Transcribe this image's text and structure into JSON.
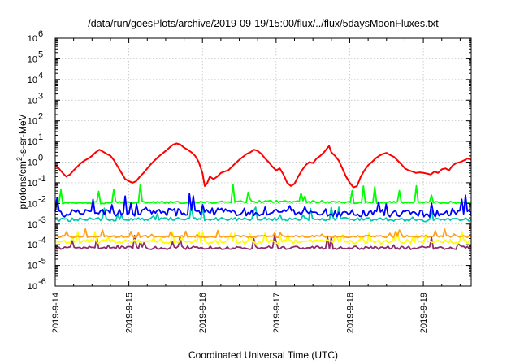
{
  "chart_data": {
    "type": "line",
    "title": "/data/run/goesPlots/archive/2019-09-19/15:00/flux/../flux/5daysMoonFluxes.txt",
    "xlabel": "Coordinated Universal Time (UTC)",
    "ylabel_parts": [
      "protons/cm",
      "2",
      "-s-sr-MeV"
    ],
    "y_scale": "log",
    "ylim_exp": [
      -6,
      6
    ],
    "y_tick_labels": [
      {
        "base": "10",
        "exp": "-6"
      },
      {
        "base": "10",
        "exp": "-5"
      },
      {
        "base": "10",
        "exp": "-4"
      },
      {
        "base": "10",
        "exp": "-3"
      },
      {
        "base": "10",
        "exp": "-2"
      },
      {
        "base": "10",
        "exp": "-1"
      },
      {
        "base": "10",
        "exp": "0"
      },
      {
        "base": "10",
        "exp": "1"
      },
      {
        "base": "10",
        "exp": "2"
      },
      {
        "base": "10",
        "exp": "3"
      },
      {
        "base": "10",
        "exp": "4"
      },
      {
        "base": "10",
        "exp": "5"
      },
      {
        "base": "10",
        "exp": "6"
      }
    ],
    "x_ticks": [
      "2019-9-14",
      "2019-9-15",
      "2019-9-16",
      "2019-9-17",
      "2019-9-18",
      "2019-9-19"
    ],
    "xlim_days": [
      0,
      5.65
    ],
    "grid": true,
    "series": [
      {
        "color": "#ff0000",
        "baseline": [
          -0.3
        ],
        "spread": 0,
        "spikes": 0,
        "points": [
          [
            0.0,
            0.7
          ],
          [
            0.05,
            0.5
          ],
          [
            0.1,
            0.3
          ],
          [
            0.15,
            0.2
          ],
          [
            0.2,
            0.25
          ],
          [
            0.25,
            0.4
          ],
          [
            0.3,
            0.6
          ],
          [
            0.35,
            0.9
          ],
          [
            0.4,
            1.2
          ],
          [
            0.45,
            1.5
          ],
          [
            0.5,
            2.0
          ],
          [
            0.55,
            3.0
          ],
          [
            0.6,
            4.0
          ],
          [
            0.65,
            3.2
          ],
          [
            0.7,
            2.5
          ],
          [
            0.75,
            2.0
          ],
          [
            0.8,
            1.2
          ],
          [
            0.85,
            0.6
          ],
          [
            0.9,
            0.3
          ],
          [
            0.95,
            0.15
          ],
          [
            1.0,
            0.12
          ],
          [
            1.05,
            0.1
          ],
          [
            1.1,
            0.12
          ],
          [
            1.15,
            0.2
          ],
          [
            1.2,
            0.3
          ],
          [
            1.25,
            0.5
          ],
          [
            1.3,
            0.8
          ],
          [
            1.35,
            1.2
          ],
          [
            1.4,
            1.8
          ],
          [
            1.45,
            2.5
          ],
          [
            1.5,
            3.5
          ],
          [
            1.55,
            5.0
          ],
          [
            1.6,
            7.0
          ],
          [
            1.65,
            8.0
          ],
          [
            1.7,
            7.0
          ],
          [
            1.75,
            5.0
          ],
          [
            1.8,
            4.0
          ],
          [
            1.85,
            3.0
          ],
          [
            1.9,
            2.0
          ],
          [
            1.95,
            1.0
          ],
          [
            2.0,
            0.3
          ],
          [
            2.03,
            0.07
          ],
          [
            2.06,
            0.09
          ],
          [
            2.1,
            0.2
          ],
          [
            2.15,
            0.15
          ],
          [
            2.2,
            0.2
          ],
          [
            2.25,
            0.3
          ],
          [
            2.3,
            0.35
          ],
          [
            2.35,
            0.4
          ],
          [
            2.4,
            0.6
          ],
          [
            2.45,
            0.9
          ],
          [
            2.5,
            1.3
          ],
          [
            2.55,
            1.8
          ],
          [
            2.6,
            2.5
          ],
          [
            2.65,
            3.0
          ],
          [
            2.7,
            4.0
          ],
          [
            2.75,
            3.5
          ],
          [
            2.8,
            2.5
          ],
          [
            2.85,
            1.5
          ],
          [
            2.9,
            1.0
          ],
          [
            2.95,
            0.6
          ],
          [
            3.0,
            0.4
          ],
          [
            3.05,
            0.5
          ],
          [
            3.1,
            0.25
          ],
          [
            3.15,
            0.1
          ],
          [
            3.2,
            0.07
          ],
          [
            3.25,
            0.09
          ],
          [
            3.3,
            0.2
          ],
          [
            3.35,
            0.4
          ],
          [
            3.4,
            0.7
          ],
          [
            3.45,
            1.0
          ],
          [
            3.5,
            0.9
          ],
          [
            3.55,
            1.5
          ],
          [
            3.6,
            2.0
          ],
          [
            3.65,
            3.0
          ],
          [
            3.7,
            5.0
          ],
          [
            3.72,
            6.0
          ],
          [
            3.75,
            3.0
          ],
          [
            3.8,
            2.0
          ],
          [
            3.85,
            1.2
          ],
          [
            3.9,
            0.5
          ],
          [
            3.95,
            0.2
          ],
          [
            4.0,
            0.1
          ],
          [
            4.05,
            0.06
          ],
          [
            4.1,
            0.07
          ],
          [
            4.15,
            0.2
          ],
          [
            4.2,
            0.4
          ],
          [
            4.25,
            0.7
          ],
          [
            4.3,
            1.0
          ],
          [
            4.35,
            1.5
          ],
          [
            4.4,
            2.0
          ],
          [
            4.45,
            2.5
          ],
          [
            4.5,
            2.8
          ],
          [
            4.55,
            2.2
          ],
          [
            4.6,
            1.8
          ],
          [
            4.65,
            1.2
          ],
          [
            4.7,
            0.8
          ],
          [
            4.75,
            0.5
          ],
          [
            4.8,
            0.4
          ],
          [
            4.85,
            0.35
          ],
          [
            4.9,
            0.3
          ],
          [
            4.95,
            0.32
          ],
          [
            5.0,
            0.3
          ],
          [
            5.05,
            0.28
          ],
          [
            5.1,
            0.25
          ],
          [
            5.15,
            0.35
          ],
          [
            5.2,
            0.3
          ],
          [
            5.25,
            0.45
          ],
          [
            5.3,
            0.5
          ],
          [
            5.35,
            0.4
          ],
          [
            5.4,
            0.7
          ],
          [
            5.45,
            0.9
          ],
          [
            5.5,
            1.0
          ],
          [
            5.55,
            1.2
          ],
          [
            5.6,
            1.5
          ],
          [
            5.65,
            1.3
          ]
        ]
      },
      {
        "color": "#00ff00",
        "baseline": [
          -2.0,
          -1.95,
          -1.95,
          -1.9,
          -1.95,
          -1.95
        ],
        "spread": 0.05,
        "spikes": 0.9,
        "points": []
      },
      {
        "color": "#00c8a8",
        "baseline": [
          -2.8,
          -2.75,
          -2.75,
          -2.75,
          -2.75,
          -2.8
        ],
        "spread": 0.08,
        "spikes": 0.7,
        "points": []
      },
      {
        "color": "#0000ff",
        "baseline": [
          -2.5,
          -2.45,
          -2.4,
          -2.45,
          -2.45,
          -2.5
        ],
        "spread": 0.18,
        "spikes": 0.8,
        "points": []
      },
      {
        "color": "#ffff00",
        "baseline": [
          -3.85,
          -3.85,
          -3.85,
          -3.85,
          -3.85,
          -3.85
        ],
        "spread": 0.1,
        "spikes": 0.5,
        "points": []
      },
      {
        "color": "#ffa020",
        "baseline": [
          -3.6,
          -3.6,
          -3.6,
          -3.6,
          -3.6,
          -3.6
        ],
        "spread": 0.05,
        "spikes": 0.4,
        "points": []
      },
      {
        "color": "#8b2d6b",
        "baseline": [
          -4.15,
          -4.15,
          -4.15,
          -4.15,
          -4.15,
          -4.15
        ],
        "spread": 0.08,
        "spikes": 0.6,
        "points": []
      }
    ]
  }
}
